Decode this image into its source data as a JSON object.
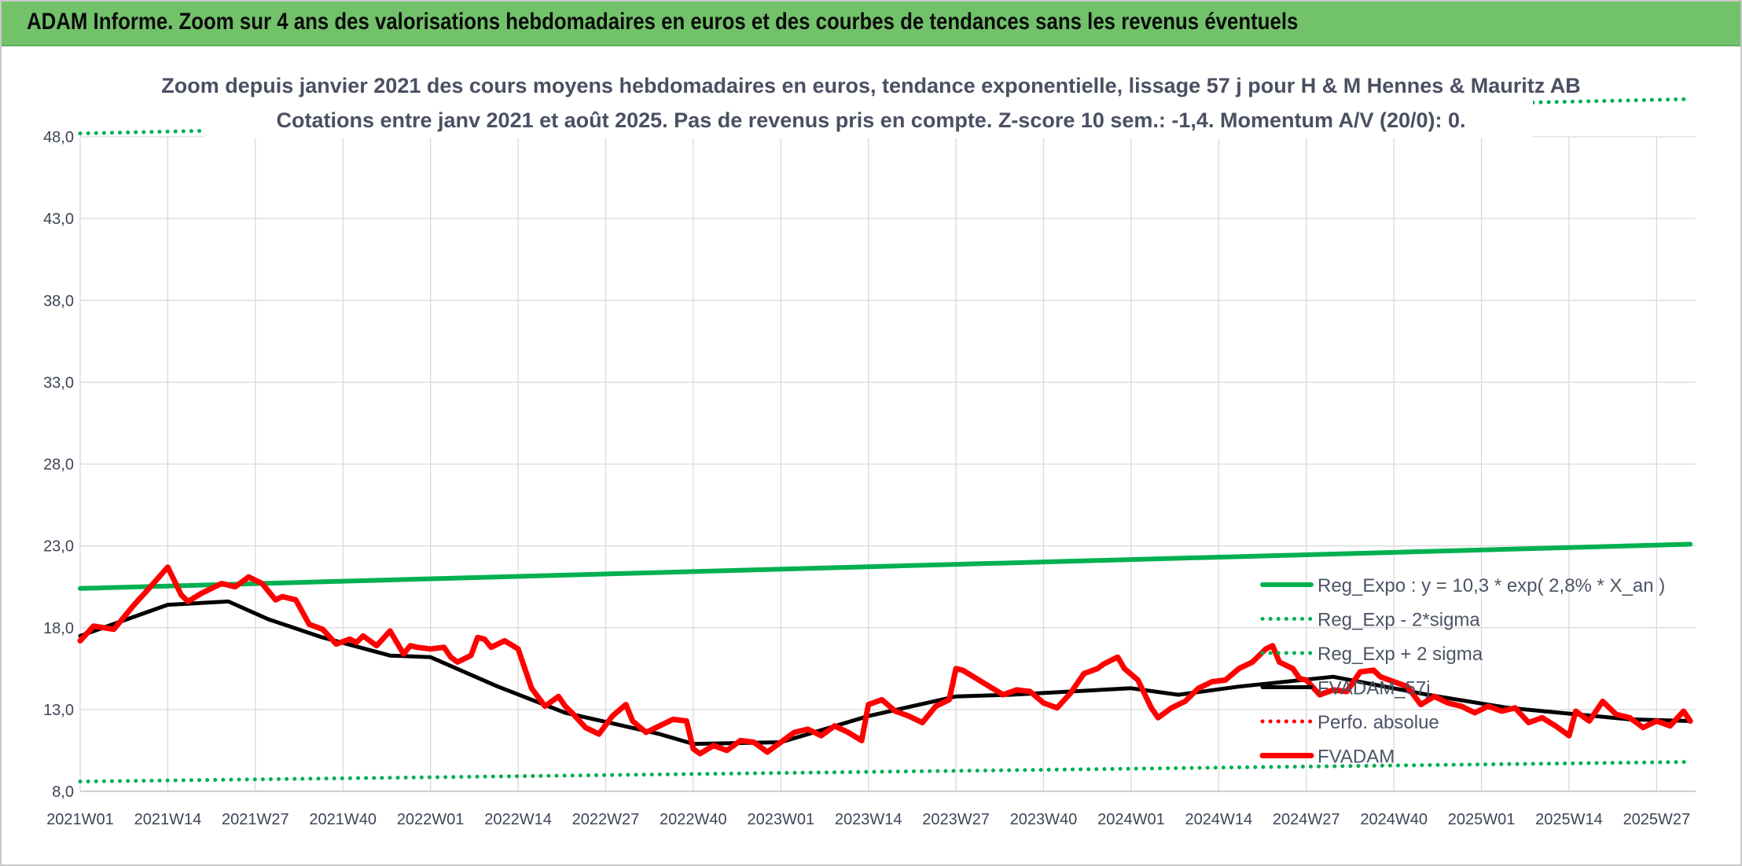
{
  "banner": {
    "title": "ADAM Informe. Zoom sur 4 ans des valorisations hebdomadaires en euros et des courbes de tendances sans les revenus éventuels"
  },
  "colors": {
    "banner": "#72c26a",
    "green": "#00b050",
    "red": "#ff0000",
    "black": "#000000",
    "grid": "#d9d9d9",
    "text": "#3d4556"
  },
  "chart_data": {
    "type": "line",
    "title_lines": [
      "Zoom depuis janvier 2021 des cours moyens hebdomadaires en euros, tendance exponentielle, lissage 57 j pour H & M Hennes & Mauritz AB",
      "Cotations entre janv 2021 et août 2025. Pas de revenus pris en compte. Z-score 10 sem.: -1,4. Momentum A/V (20/0): 0."
    ],
    "ylim": [
      8,
      48
    ],
    "y_ticks": [
      "8,0",
      "13,0",
      "18,0",
      "23,0",
      "28,0",
      "33,0",
      "38,0",
      "43,0",
      "48,0"
    ],
    "y_tick_values": [
      8,
      13,
      18,
      23,
      28,
      33,
      38,
      43,
      48
    ],
    "x_ticks": [
      "2021W01",
      "2021W14",
      "2021W27",
      "2021W40",
      "2022W01",
      "2022W14",
      "2022W27",
      "2022W40",
      "2023W01",
      "2023W14",
      "2023W27",
      "2023W40",
      "2024W01",
      "2024W14",
      "2024W27",
      "2024W40",
      "2025W01",
      "2025W14",
      "2025W27"
    ],
    "x_tick_weeks": [
      0,
      13,
      26,
      39,
      52,
      65,
      78,
      91,
      104,
      117,
      130,
      143,
      156,
      169,
      182,
      195,
      208,
      221,
      234
    ],
    "x_range_weeks": [
      0,
      239
    ],
    "grid": true,
    "legend_position": "right",
    "legend": [
      {
        "label": "Reg_Expo : y = 10,3 * exp( 2,8% *  X_an )",
        "style": "solid",
        "color": "#00b050"
      },
      {
        "label": "Reg_Exp - 2*sigma",
        "style": "dotted",
        "color": "#00b050"
      },
      {
        "label": "Reg_Exp + 2 sigma",
        "style": "dotted",
        "color": "#00b050"
      },
      {
        "label": "FVADAM_57j",
        "style": "solid-thin",
        "color": "#000000"
      },
      {
        "label": "Perfo. absolue",
        "style": "dotted",
        "color": "#ff0000"
      },
      {
        "label": "FVADAM",
        "style": "solid-thick",
        "color": "#ff0000"
      }
    ],
    "series": [
      {
        "name": "Reg_Expo : y = 10,3 * exp( 2,8% *  X_an )",
        "x": [
          0,
          239
        ],
        "y": [
          20.4,
          23.1
        ]
      },
      {
        "name": "Reg_Exp - 2*sigma",
        "x": [
          0,
          239
        ],
        "y": [
          8.6,
          9.8
        ]
      },
      {
        "name": "Reg_Exp + 2 sigma",
        "x": [
          0,
          239
        ],
        "y": [
          48.2,
          50.3
        ]
      },
      {
        "name": "FVADAM_57j",
        "x": [
          0,
          13,
          22,
          28,
          36,
          46,
          52,
          62,
          72,
          86,
          91,
          104,
          117,
          130,
          138,
          156,
          163,
          172,
          186,
          200,
          212,
          230,
          239
        ],
        "y": [
          17.5,
          19.4,
          19.6,
          18.5,
          17.4,
          16.3,
          16.2,
          14.4,
          12.8,
          11.5,
          10.9,
          11.0,
          12.6,
          13.8,
          13.9,
          14.3,
          13.9,
          14.4,
          15.0,
          13.9,
          13.1,
          12.4,
          12.3
        ]
      },
      {
        "name": "FVADAM",
        "x": [
          0,
          2,
          5,
          8,
          10,
          13,
          15,
          16,
          18,
          21,
          23,
          25,
          26,
          27,
          29,
          30,
          32,
          34,
          36,
          38,
          40,
          41,
          42,
          44,
          46,
          48,
          49,
          50,
          52,
          54,
          55,
          56,
          58,
          59,
          60,
          61,
          63,
          65,
          67,
          69,
          71,
          72,
          73,
          75,
          77,
          79,
          81,
          82,
          84,
          86,
          88,
          90,
          91,
          92,
          94,
          96,
          98,
          100,
          102,
          104,
          106,
          108,
          110,
          112,
          114,
          116,
          117,
          119,
          121,
          123,
          125,
          127,
          129,
          130,
          131,
          133,
          135,
          137,
          139,
          141,
          143,
          145,
          147,
          149,
          151,
          152,
          154,
          155,
          157,
          159,
          160,
          162,
          164,
          166,
          168,
          170,
          172,
          174,
          176,
          177,
          178,
          180,
          181,
          182,
          184,
          186,
          188,
          190,
          192,
          193,
          195,
          197,
          199,
          201,
          203,
          205,
          207,
          209,
          211,
          213,
          215,
          217,
          219,
          221,
          222,
          224,
          226,
          228,
          230,
          232,
          234,
          236,
          238,
          239
        ],
        "y": [
          17.2,
          18.1,
          17.9,
          19.4,
          20.3,
          21.7,
          20.0,
          19.6,
          20.1,
          20.7,
          20.5,
          21.1,
          20.9,
          20.7,
          19.7,
          19.9,
          19.7,
          18.2,
          17.9,
          17.0,
          17.3,
          17.1,
          17.5,
          16.9,
          17.8,
          16.4,
          16.9,
          16.8,
          16.7,
          16.8,
          16.2,
          15.9,
          16.3,
          17.4,
          17.3,
          16.8,
          17.2,
          16.7,
          14.3,
          13.2,
          13.8,
          13.2,
          12.8,
          11.9,
          11.5,
          12.6,
          13.3,
          12.3,
          11.6,
          12.0,
          12.4,
          12.3,
          10.6,
          10.3,
          10.8,
          10.5,
          11.1,
          11.0,
          10.4,
          11.0,
          11.6,
          11.8,
          11.4,
          12.0,
          11.6,
          11.1,
          13.3,
          13.6,
          12.9,
          12.6,
          12.2,
          13.2,
          13.6,
          15.5,
          15.4,
          14.9,
          14.4,
          13.9,
          14.2,
          14.1,
          13.4,
          13.1,
          14.0,
          15.2,
          15.5,
          15.8,
          16.2,
          15.5,
          14.8,
          13.1,
          12.5,
          13.1,
          13.5,
          14.3,
          14.7,
          14.8,
          15.5,
          15.9,
          16.7,
          16.9,
          15.9,
          15.5,
          14.9,
          14.8,
          13.9,
          14.2,
          14.1,
          15.3,
          15.4,
          15.0,
          14.7,
          14.4,
          13.3,
          13.8,
          13.4,
          13.2,
          12.8,
          13.2,
          12.9,
          13.1,
          12.2,
          12.5,
          12.0,
          11.4,
          12.9,
          12.3,
          13.5,
          12.7,
          12.5,
          11.9,
          12.3,
          12.0,
          12.9,
          12.3
        ]
      }
    ]
  }
}
